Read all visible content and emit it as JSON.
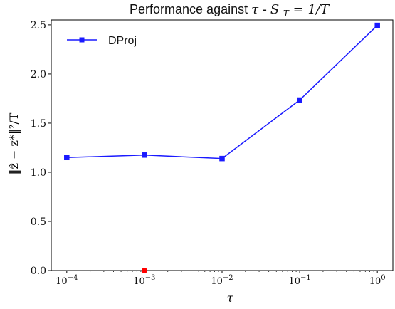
{
  "chart_data": {
    "type": "line",
    "title": {
      "prefix": "Performance against ",
      "tau": "τ",
      "middle": " - ",
      "S": "S",
      "sub": "T",
      "suffix": " = 1/T"
    },
    "xlabel": "τ",
    "ylabel": "‖ẑ − z*‖²/T",
    "x_scale": "log",
    "x_ticks": [
      {
        "value": 0.0001,
        "base": "10",
        "exp": "−4"
      },
      {
        "value": 0.001,
        "base": "10",
        "exp": "−3"
      },
      {
        "value": 0.01,
        "base": "10",
        "exp": "−2"
      },
      {
        "value": 0.1,
        "base": "10",
        "exp": "−1"
      },
      {
        "value": 1,
        "base": "10",
        "exp": "0"
      }
    ],
    "y_ticks": [
      "0.0",
      "0.5",
      "1.0",
      "1.5",
      "2.0",
      "2.5"
    ],
    "y_tick_values": [
      0,
      0.5,
      1,
      1.5,
      2,
      2.5
    ],
    "ylim": [
      0,
      2.55
    ],
    "grid": false,
    "legend_position": "top-left",
    "series": [
      {
        "name": "DProj",
        "color": "#1a1aff",
        "marker": "square",
        "x": [
          0.0001,
          0.001,
          0.01,
          0.1,
          1
        ],
        "y": [
          1.15,
          1.175,
          1.14,
          1.735,
          2.495
        ]
      }
    ],
    "extra_points": [
      {
        "x": 0.001,
        "y": 0,
        "color": "#ff0000",
        "marker": "circle"
      }
    ]
  }
}
